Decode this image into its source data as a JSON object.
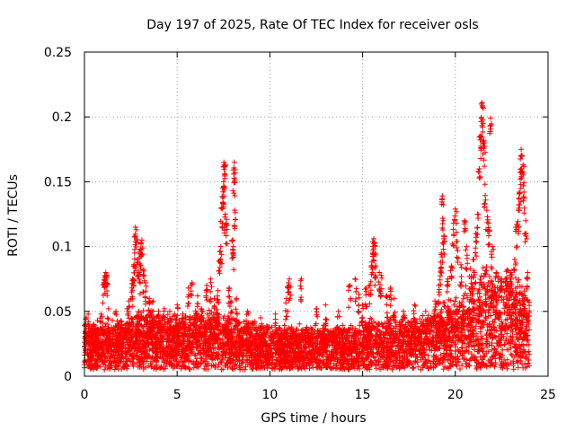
{
  "chart_data": {
    "type": "scatter",
    "title": "Day 197 of 2025, Rate Of TEC Index for receiver osls",
    "xlabel": "GPS time / hours",
    "ylabel": "ROTI / TECUs",
    "xlim": [
      0,
      25
    ],
    "ylim": [
      0,
      0.25
    ],
    "x_ticks": [
      0,
      5,
      10,
      15,
      20,
      25
    ],
    "x_tick_labels": [
      "0",
      "5",
      "10",
      "15",
      "20",
      "25"
    ],
    "y_ticks": [
      0,
      0.05,
      0.1,
      0.15,
      0.2,
      0.25
    ],
    "y_tick_labels": [
      "0",
      "0.05",
      "0.1",
      "0.15",
      "0.2",
      "0.25"
    ],
    "grid": true,
    "marker": "+",
    "color": "#ff0000",
    "series": [
      {
        "name": "ROTI",
        "points": [
          [
            0.1,
            0.045
          ],
          [
            0.2,
            0.048
          ],
          [
            0.3,
            0.035
          ],
          [
            0.5,
            0.04
          ],
          [
            0.7,
            0.043
          ],
          [
            0.9,
            0.048
          ],
          [
            1.05,
            0.072
          ],
          [
            1.1,
            0.076
          ],
          [
            1.15,
            0.08
          ],
          [
            1.2,
            0.078
          ],
          [
            1.3,
            0.052
          ],
          [
            1.7,
            0.05
          ],
          [
            2.0,
            0.042
          ],
          [
            2.3,
            0.052
          ],
          [
            2.4,
            0.058
          ],
          [
            2.55,
            0.068
          ],
          [
            2.6,
            0.075
          ],
          [
            2.65,
            0.085
          ],
          [
            2.7,
            0.095
          ],
          [
            2.75,
            0.115
          ],
          [
            2.8,
            0.113
          ],
          [
            2.85,
            0.09
          ],
          [
            2.95,
            0.08
          ],
          [
            3.0,
            0.098
          ],
          [
            3.05,
            0.102
          ],
          [
            3.1,
            0.105
          ],
          [
            3.2,
            0.082
          ],
          [
            3.3,
            0.072
          ],
          [
            3.5,
            0.06
          ],
          [
            3.7,
            0.058
          ],
          [
            4.0,
            0.05
          ],
          [
            4.3,
            0.052
          ],
          [
            4.6,
            0.05
          ],
          [
            5.0,
            0.055
          ],
          [
            5.3,
            0.048
          ],
          [
            5.6,
            0.068
          ],
          [
            5.8,
            0.072
          ],
          [
            6.1,
            0.062
          ],
          [
            6.3,
            0.052
          ],
          [
            6.6,
            0.07
          ],
          [
            6.8,
            0.075
          ],
          [
            7.0,
            0.06
          ],
          [
            7.2,
            0.066
          ],
          [
            7.3,
            0.096
          ],
          [
            7.35,
            0.1
          ],
          [
            7.4,
            0.13
          ],
          [
            7.45,
            0.145
          ],
          [
            7.5,
            0.15
          ],
          [
            7.52,
            0.165
          ],
          [
            7.55,
            0.163
          ],
          [
            7.6,
            0.125
          ],
          [
            7.65,
            0.118
          ],
          [
            7.8,
            0.068
          ],
          [
            7.9,
            0.058
          ],
          [
            8.0,
            0.105
          ],
          [
            8.02,
            0.1
          ],
          [
            8.05,
            0.156
          ],
          [
            8.08,
            0.165
          ],
          [
            8.1,
            0.128
          ],
          [
            8.2,
            0.06
          ],
          [
            8.8,
            0.05
          ],
          [
            9.5,
            0.045
          ],
          [
            10.3,
            0.048
          ],
          [
            10.9,
            0.06
          ],
          [
            11.0,
            0.072
          ],
          [
            11.05,
            0.075
          ],
          [
            11.7,
            0.075
          ],
          [
            12.5,
            0.052
          ],
          [
            13.0,
            0.055
          ],
          [
            13.7,
            0.05
          ],
          [
            14.3,
            0.07
          ],
          [
            14.6,
            0.075
          ],
          [
            14.8,
            0.063
          ],
          [
            15.0,
            0.055
          ],
          [
            15.2,
            0.068
          ],
          [
            15.4,
            0.07
          ],
          [
            15.5,
            0.088
          ],
          [
            15.55,
            0.1
          ],
          [
            15.6,
            0.106
          ],
          [
            15.65,
            0.103
          ],
          [
            15.7,
            0.085
          ],
          [
            15.9,
            0.08
          ],
          [
            16.0,
            0.078
          ],
          [
            16.3,
            0.062
          ],
          [
            16.5,
            0.068
          ],
          [
            16.7,
            0.06
          ],
          [
            17.2,
            0.05
          ],
          [
            17.8,
            0.055
          ],
          [
            18.4,
            0.05
          ],
          [
            18.9,
            0.058
          ],
          [
            19.1,
            0.07
          ],
          [
            19.2,
            0.088
          ],
          [
            19.25,
            0.095
          ],
          [
            19.3,
            0.139
          ],
          [
            19.35,
            0.12
          ],
          [
            19.4,
            0.108
          ],
          [
            19.6,
            0.075
          ],
          [
            19.8,
            0.085
          ],
          [
            19.9,
            0.118
          ],
          [
            20.0,
            0.129
          ],
          [
            20.1,
            0.104
          ],
          [
            20.3,
            0.086
          ],
          [
            20.5,
            0.12
          ],
          [
            20.6,
            0.1
          ],
          [
            20.8,
            0.083
          ],
          [
            21.0,
            0.09
          ],
          [
            21.1,
            0.11
          ],
          [
            21.2,
            0.125
          ],
          [
            21.3,
            0.16
          ],
          [
            21.35,
            0.185
          ],
          [
            21.4,
            0.199
          ],
          [
            21.45,
            0.211
          ],
          [
            21.5,
            0.195
          ],
          [
            21.55,
            0.18
          ],
          [
            21.6,
            0.148
          ],
          [
            21.7,
            0.128
          ],
          [
            21.8,
            0.118
          ],
          [
            21.9,
            0.199
          ],
          [
            22.0,
            0.1
          ],
          [
            22.2,
            0.08
          ],
          [
            22.5,
            0.075
          ],
          [
            22.8,
            0.082
          ],
          [
            23.0,
            0.08
          ],
          [
            23.2,
            0.09
          ],
          [
            23.3,
            0.117
          ],
          [
            23.4,
            0.128
          ],
          [
            23.45,
            0.142
          ],
          [
            23.5,
            0.152
          ],
          [
            23.55,
            0.175
          ],
          [
            23.6,
            0.17
          ],
          [
            23.65,
            0.163
          ],
          [
            23.7,
            0.142
          ],
          [
            23.8,
            0.12
          ],
          [
            23.9,
            0.08
          ]
        ],
        "bulk_band": {
          "description": "dense continuous scatter across the full 0 to 24 h range",
          "x_range": [
            0,
            24
          ],
          "y_floor": 0.005,
          "y_typical_max": [
            [
              0,
              0.035
            ],
            [
              2,
              0.038
            ],
            [
              3,
              0.045
            ],
            [
              5,
              0.042
            ],
            [
              7,
              0.045
            ],
            [
              8,
              0.04
            ],
            [
              10,
              0.035
            ],
            [
              12,
              0.035
            ],
            [
              14,
              0.035
            ],
            [
              16,
              0.04
            ],
            [
              18,
              0.04
            ],
            [
              19.5,
              0.05
            ],
            [
              20.5,
              0.06
            ],
            [
              21.5,
              0.075
            ],
            [
              22.5,
              0.07
            ],
            [
              23.5,
              0.07
            ],
            [
              24,
              0.05
            ]
          ]
        }
      }
    ]
  }
}
